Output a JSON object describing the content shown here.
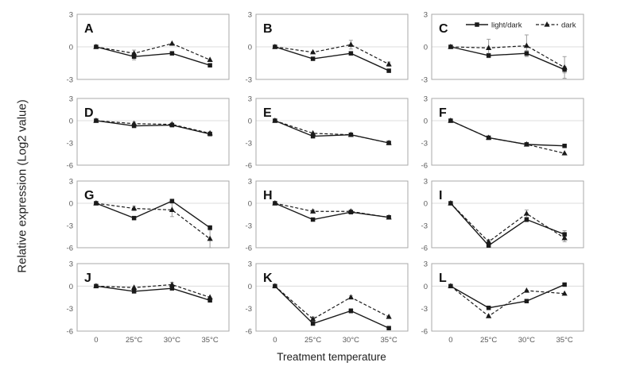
{
  "figure": {
    "xlabel": "Treatment temperature",
    "ylabel": "Relative expression (Log2 value)"
  },
  "chart_data": {
    "type": "line",
    "categories": [
      "0",
      "25°C",
      "30°C",
      "35°C"
    ],
    "xlabel": "Treatment temperature",
    "ylabel": "Relative expression (Log2 value)",
    "legend": [
      {
        "name": "light/dark",
        "marker": "square",
        "line": "solid"
      },
      {
        "name": "dark",
        "marker": "triangle",
        "line": "dashed"
      }
    ],
    "legend_position": "top of panel C",
    "grid": "zero line only",
    "colors": {
      "series": "#1a1a1a",
      "error_bar": "#9e9e9e",
      "gridline": "#dcdcdc",
      "panel_border": "#a9a9a9",
      "tick_label": "#595959",
      "text": "#1f1f1f"
    },
    "panels": [
      {
        "label": "A",
        "ylim": [
          -3,
          3
        ],
        "yticks": [
          3,
          0,
          -3
        ],
        "series": [
          {
            "name": "light/dark",
            "values": [
              0,
              -0.9,
              -0.6,
              -1.7
            ],
            "err": [
              0,
              0.3,
              0,
              0
            ]
          },
          {
            "name": "dark",
            "values": [
              0,
              -0.6,
              0.3,
              -1.2
            ],
            "err": [
              0,
              0.3,
              0,
              0
            ]
          }
        ]
      },
      {
        "label": "B",
        "ylim": [
          -3,
          3
        ],
        "yticks": [
          3,
          0,
          -3
        ],
        "series": [
          {
            "name": "light/dark",
            "values": [
              0,
              -1.1,
              -0.6,
              -2.2
            ],
            "err": [
              0,
              0,
              0,
              0.15
            ]
          },
          {
            "name": "dark",
            "values": [
              0,
              -0.5,
              0.2,
              -1.6
            ],
            "err": [
              0,
              0,
              0.4,
              0.2
            ]
          }
        ]
      },
      {
        "label": "C",
        "ylim": [
          -3,
          3
        ],
        "yticks": [
          3,
          0,
          -3
        ],
        "series": [
          {
            "name": "light/dark",
            "values": [
              0,
              -0.8,
              -0.6,
              -2.1
            ],
            "err": [
              0,
              0.2,
              0.25,
              0.3
            ]
          },
          {
            "name": "dark",
            "values": [
              0,
              -0.1,
              0.1,
              -1.9
            ],
            "err": [
              0,
              0.8,
              1.0,
              1.0
            ]
          }
        ]
      },
      {
        "label": "D",
        "ylim": [
          -6,
          3
        ],
        "yticks": [
          3,
          0,
          -3,
          -6
        ],
        "series": [
          {
            "name": "light/dark",
            "values": [
              0,
              -0.7,
              -0.6,
              -1.8
            ],
            "err": [
              0,
              0,
              0,
              0
            ]
          },
          {
            "name": "dark",
            "values": [
              0,
              -0.4,
              -0.5,
              -1.7
            ],
            "err": [
              0,
              0.2,
              0.2,
              0.2
            ]
          }
        ]
      },
      {
        "label": "E",
        "ylim": [
          -6,
          3
        ],
        "yticks": [
          3,
          0,
          -3,
          -6
        ],
        "series": [
          {
            "name": "light/dark",
            "values": [
              0,
              -2.1,
              -1.9,
              -3.0
            ],
            "err": [
              0,
              0,
              0,
              0
            ]
          },
          {
            "name": "dark",
            "values": [
              0,
              -1.7,
              -1.9,
              -3.0
            ],
            "err": [
              0,
              0,
              0,
              0
            ]
          }
        ]
      },
      {
        "label": "F",
        "ylim": [
          -6,
          3
        ],
        "yticks": [
          3,
          0,
          -3,
          -6
        ],
        "series": [
          {
            "name": "light/dark",
            "values": [
              0,
              -2.3,
              -3.2,
              -3.4
            ],
            "err": [
              0,
              0,
              0,
              0
            ]
          },
          {
            "name": "dark",
            "values": [
              0,
              -2.3,
              -3.2,
              -4.4
            ],
            "err": [
              0,
              0,
              0,
              0
            ]
          }
        ]
      },
      {
        "label": "G",
        "ylim": [
          -6,
          3
        ],
        "yticks": [
          3,
          0,
          -3,
          -6
        ],
        "series": [
          {
            "name": "light/dark",
            "values": [
              0,
              -2.0,
              0.3,
              -3.3
            ],
            "err": [
              0,
              0,
              0,
              0.3
            ]
          },
          {
            "name": "dark",
            "values": [
              0,
              -0.7,
              -0.9,
              -4.8
            ],
            "err": [
              0,
              0.3,
              0.9,
              1.2
            ]
          }
        ]
      },
      {
        "label": "H",
        "ylim": [
          -6,
          3
        ],
        "yticks": [
          3,
          0,
          -3,
          -6
        ],
        "series": [
          {
            "name": "light/dark",
            "values": [
              0,
              -2.2,
              -1.2,
              -1.9
            ],
            "err": [
              0,
              0,
              0.2,
              0.2
            ]
          },
          {
            "name": "dark",
            "values": [
              0,
              -1.1,
              -1.1,
              -1.9
            ],
            "err": [
              0,
              0.2,
              0.2,
              0.2
            ]
          }
        ]
      },
      {
        "label": "I",
        "ylim": [
          -6,
          3
        ],
        "yticks": [
          3,
          0,
          -3,
          -6
        ],
        "series": [
          {
            "name": "light/dark",
            "values": [
              0,
              -5.7,
              -2.2,
              -4.2
            ],
            "err": [
              0,
              0.2,
              0.3,
              0.5
            ]
          },
          {
            "name": "dark",
            "values": [
              0,
              -5.2,
              -1.4,
              -4.7
            ],
            "err": [
              0,
              0.3,
              0.5,
              0.5
            ]
          }
        ]
      },
      {
        "label": "J",
        "ylim": [
          -6,
          3
        ],
        "yticks": [
          3,
          0,
          -3,
          -6
        ],
        "series": [
          {
            "name": "light/dark",
            "values": [
              0,
              -0.7,
              -0.3,
              -1.9
            ],
            "err": [
              0,
              0,
              0,
              0
            ]
          },
          {
            "name": "dark",
            "values": [
              0,
              -0.2,
              0.2,
              -1.5
            ],
            "err": [
              0,
              0,
              0.3,
              0
            ]
          }
        ]
      },
      {
        "label": "K",
        "ylim": [
          -6,
          3
        ],
        "yticks": [
          3,
          0,
          -3,
          -6
        ],
        "series": [
          {
            "name": "light/dark",
            "values": [
              0,
              -5.0,
              -3.3,
              -5.6
            ],
            "err": [
              0,
              0.2,
              0.3,
              0
            ]
          },
          {
            "name": "dark",
            "values": [
              0,
              -4.4,
              -1.5,
              -4.1
            ],
            "err": [
              0,
              0.3,
              0.2,
              0
            ]
          }
        ]
      },
      {
        "label": "L",
        "ylim": [
          -6,
          3
        ],
        "yticks": [
          3,
          0,
          -3,
          -6
        ],
        "series": [
          {
            "name": "light/dark",
            "values": [
              0,
              -2.9,
              -2.0,
              0.2
            ],
            "err": [
              0,
              0,
              0,
              0
            ]
          },
          {
            "name": "dark",
            "values": [
              0,
              -4.0,
              -0.6,
              -1.0
            ],
            "err": [
              0,
              0,
              0,
              0
            ]
          }
        ]
      }
    ]
  }
}
